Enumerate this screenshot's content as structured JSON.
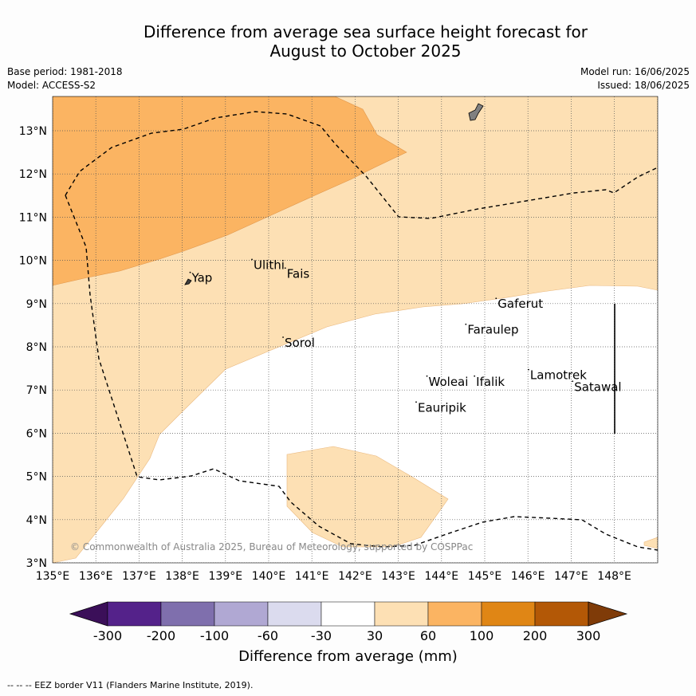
{
  "title_line1": "Difference from average sea surface height forecast for",
  "title_line2": "August to October 2025",
  "base_period": "Base period: 1981-2018",
  "model": "Model: ACCESS-S2",
  "model_run": "Model run: 16/06/2025",
  "issued": "Issued: 18/06/2025",
  "lon_ticks": [
    "135°E",
    "136°E",
    "137°E",
    "138°E",
    "139°E",
    "140°E",
    "141°E",
    "142°E",
    "143°E",
    "144°E",
    "145°E",
    "146°E",
    "147°E",
    "148°E"
  ],
  "lat_ticks": [
    "3°N",
    "4°N",
    "5°N",
    "6°N",
    "7°N",
    "8°N",
    "9°N",
    "10°N",
    "11°N",
    "12°N",
    "13°N"
  ],
  "places": [
    {
      "name": "Yap",
      "lon": 138.22,
      "lat": 9.5
    },
    {
      "name": "Ulithi",
      "lon": 139.65,
      "lat": 9.8
    },
    {
      "name": "Fais",
      "lon": 140.42,
      "lat": 9.6
    },
    {
      "name": "Sorol",
      "lon": 140.37,
      "lat": 8.0
    },
    {
      "name": "Gaferut",
      "lon": 145.3,
      "lat": 8.9
    },
    {
      "name": "Faraulep",
      "lon": 144.6,
      "lat": 8.3
    },
    {
      "name": "Woleai",
      "lon": 143.7,
      "lat": 7.1
    },
    {
      "name": "Ifalik",
      "lon": 144.8,
      "lat": 7.1
    },
    {
      "name": "Lamotrek",
      "lon": 146.05,
      "lat": 7.25
    },
    {
      "name": "Satawal",
      "lon": 147.07,
      "lat": 6.98
    },
    {
      "name": "Eauripik",
      "lon": 143.45,
      "lat": 6.5
    }
  ],
  "copyright": "© Commonwealth of Australia 2025, Bureau of Meteorology, supported by COSPPac",
  "colorbar": {
    "title": "Difference from average (mm)",
    "labels": [
      "-300",
      "-200",
      "-100",
      "-60",
      "-30",
      "30",
      "60",
      "100",
      "200",
      "300"
    ],
    "colors": [
      "#3b0f59",
      "#54228a",
      "#7f6fad",
      "#b0a8d3",
      "#dbdbee",
      "#ffffff",
      "#fde0b4",
      "#fbb462",
      "#e08615",
      "#b35806",
      "#7f3b08"
    ]
  },
  "footnote": "--  --  -- EEZ border V11 (Flanders Marine Institute, 2019).",
  "colors": {
    "band_30_60": "#fde0b4",
    "band_60_100": "#fbb462",
    "land": "#808080"
  }
}
